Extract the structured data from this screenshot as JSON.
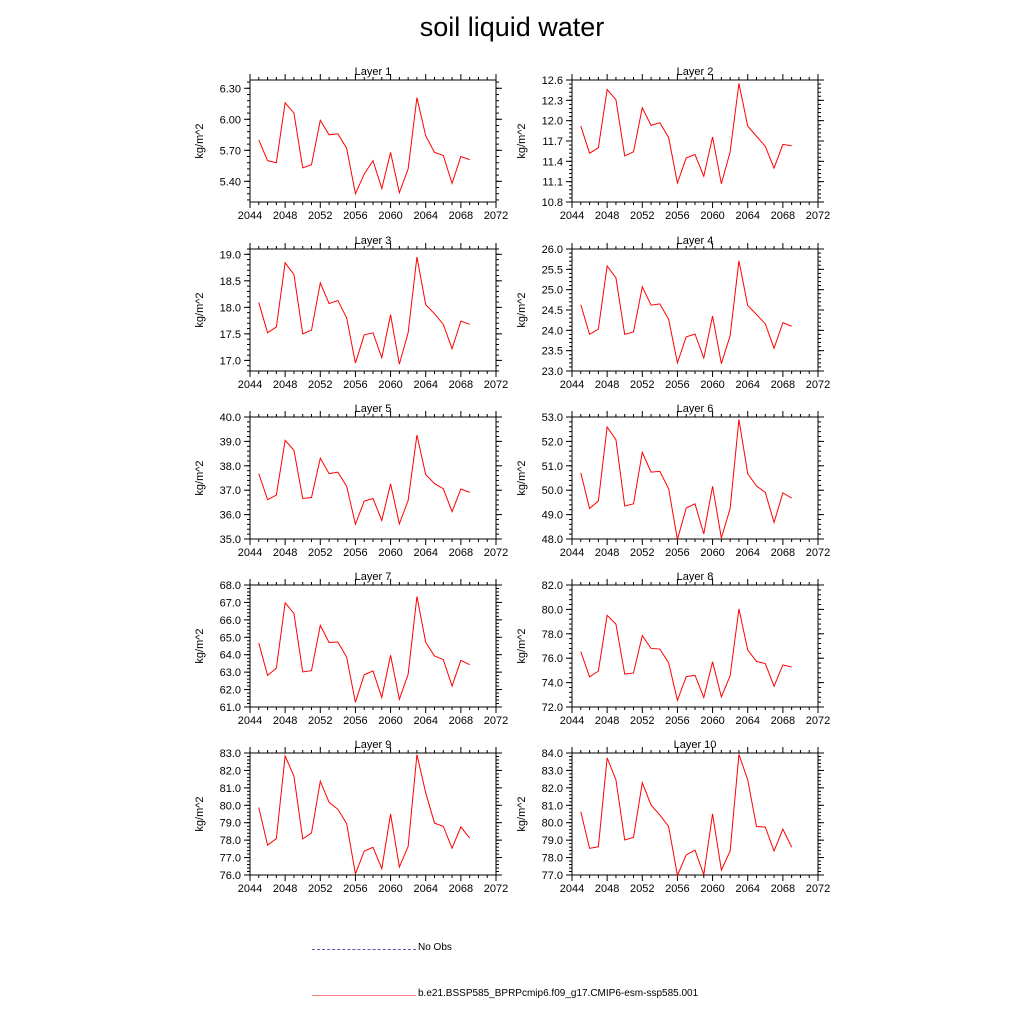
{
  "title": "soil liquid water",
  "colors": {
    "series": "#ff0000",
    "no_obs": "#5a5aaa",
    "model_legend": "#ff8080"
  },
  "legend": [
    {
      "label": "No Obs",
      "style": "dashed"
    },
    {
      "label": "b.e21.BSSP585_BPRPcmip6.f09_g17.CMIP6-esm-ssp585.001",
      "style": "solid"
    }
  ],
  "chart_data": [
    {
      "type": "line",
      "title": "Layer 1",
      "ylabel": "kg/m^2",
      "xlim": [
        2044,
        2072
      ],
      "xticks": [
        2044,
        2048,
        2052,
        2056,
        2060,
        2064,
        2068,
        2072
      ],
      "ylim": [
        5.2,
        6.38
      ],
      "yticks": [
        "5.40",
        "5.70",
        "6.00",
        "6.30"
      ],
      "x": [
        2045,
        2046,
        2047,
        2048,
        2049,
        2050,
        2051,
        2052,
        2053,
        2054,
        2055,
        2056,
        2057,
        2058,
        2059,
        2060,
        2061,
        2062,
        2063,
        2064,
        2065,
        2066,
        2067,
        2068,
        2069
      ],
      "series": [
        {
          "values": [
            5.8,
            5.6,
            5.58,
            6.16,
            6.06,
            5.53,
            5.56,
            5.99,
            5.85,
            5.86,
            5.72,
            5.28,
            5.47,
            5.6,
            5.33,
            5.68,
            5.29,
            5.52,
            6.21,
            5.84,
            5.68,
            5.65,
            5.38,
            5.64,
            5.61
          ]
        }
      ]
    },
    {
      "type": "line",
      "title": "Layer 2",
      "ylabel": "kg/m^2",
      "xlim": [
        2044,
        2072
      ],
      "xticks": [
        2044,
        2048,
        2052,
        2056,
        2060,
        2064,
        2068,
        2072
      ],
      "ylim": [
        10.8,
        12.6
      ],
      "yticks": [
        "10.8",
        "11.1",
        "11.4",
        "11.7",
        "12.0",
        "12.3",
        "12.6"
      ],
      "x": [
        2045,
        2046,
        2047,
        2048,
        2049,
        2050,
        2051,
        2052,
        2053,
        2054,
        2055,
        2056,
        2057,
        2058,
        2059,
        2060,
        2061,
        2062,
        2063,
        2064,
        2065,
        2066,
        2067,
        2068,
        2069
      ],
      "series": [
        {
          "values": [
            11.92,
            11.52,
            11.6,
            12.46,
            12.31,
            11.48,
            11.54,
            12.19,
            11.93,
            11.97,
            11.75,
            11.08,
            11.45,
            11.5,
            11.18,
            11.76,
            11.07,
            11.54,
            12.55,
            11.92,
            11.77,
            11.62,
            11.3,
            11.65,
            11.63
          ]
        }
      ]
    },
    {
      "type": "line",
      "title": "Layer 3",
      "ylabel": "kg/m^2",
      "xlim": [
        2044,
        2072
      ],
      "xticks": [
        2044,
        2048,
        2052,
        2056,
        2060,
        2064,
        2068,
        2072
      ],
      "ylim": [
        16.8,
        19.1
      ],
      "yticks": [
        "17.0",
        "17.5",
        "18.0",
        "18.5",
        "19.0"
      ],
      "x": [
        2045,
        2046,
        2047,
        2048,
        2049,
        2050,
        2051,
        2052,
        2053,
        2054,
        2055,
        2056,
        2057,
        2058,
        2059,
        2060,
        2061,
        2062,
        2063,
        2064,
        2065,
        2066,
        2067,
        2068,
        2069
      ],
      "series": [
        {
          "values": [
            18.09,
            17.52,
            17.63,
            18.84,
            18.62,
            17.5,
            17.57,
            18.46,
            18.07,
            18.13,
            17.8,
            16.95,
            17.48,
            17.52,
            17.05,
            17.86,
            16.93,
            17.52,
            18.95,
            18.05,
            17.88,
            17.68,
            17.22,
            17.74,
            17.68
          ]
        }
      ]
    },
    {
      "type": "line",
      "title": "Layer 4",
      "ylabel": "kg/m^2",
      "xlim": [
        2044,
        2072
      ],
      "xticks": [
        2044,
        2048,
        2052,
        2056,
        2060,
        2064,
        2068,
        2072
      ],
      "ylim": [
        23.0,
        26.0
      ],
      "yticks": [
        "23.0",
        "23.5",
        "24.0",
        "24.5",
        "25.0",
        "25.5",
        "26.0"
      ],
      "x": [
        2045,
        2046,
        2047,
        2048,
        2049,
        2050,
        2051,
        2052,
        2053,
        2054,
        2055,
        2056,
        2057,
        2058,
        2059,
        2060,
        2061,
        2062,
        2063,
        2064,
        2065,
        2066,
        2067,
        2068,
        2069
      ],
      "series": [
        {
          "values": [
            24.63,
            23.9,
            24.03,
            25.58,
            25.29,
            23.9,
            23.96,
            25.07,
            24.62,
            24.65,
            24.27,
            23.2,
            23.84,
            23.91,
            23.32,
            24.35,
            23.18,
            23.87,
            25.71,
            24.61,
            24.39,
            24.16,
            23.56,
            24.19,
            24.1
          ]
        }
      ]
    },
    {
      "type": "line",
      "title": "Layer 5",
      "ylabel": "kg/m^2",
      "xlim": [
        2044,
        2072
      ],
      "xticks": [
        2044,
        2048,
        2052,
        2056,
        2060,
        2064,
        2068,
        2072
      ],
      "ylim": [
        35.0,
        40.0
      ],
      "yticks": [
        "35.0",
        "36.0",
        "37.0",
        "38.0",
        "39.0",
        "40.0"
      ],
      "x": [
        2045,
        2046,
        2047,
        2048,
        2049,
        2050,
        2051,
        2052,
        2053,
        2054,
        2055,
        2056,
        2057,
        2058,
        2059,
        2060,
        2061,
        2062,
        2063,
        2064,
        2065,
        2066,
        2067,
        2068,
        2069
      ],
      "series": [
        {
          "values": [
            37.68,
            36.61,
            36.8,
            39.04,
            38.64,
            36.66,
            36.7,
            38.31,
            37.68,
            37.74,
            37.16,
            35.61,
            36.55,
            36.66,
            35.76,
            37.26,
            35.62,
            36.58,
            39.26,
            37.64,
            37.27,
            37.06,
            36.12,
            37.05,
            36.91
          ]
        }
      ]
    },
    {
      "type": "line",
      "title": "Layer 6",
      "ylabel": "kg/m^2",
      "xlim": [
        2044,
        2072
      ],
      "xticks": [
        2044,
        2048,
        2052,
        2056,
        2060,
        2064,
        2068,
        2072
      ],
      "ylim": [
        48.0,
        53.0
      ],
      "yticks": [
        "48.0",
        "49.0",
        "50.0",
        "51.0",
        "52.0",
        "53.0"
      ],
      "x": [
        2045,
        2046,
        2047,
        2048,
        2049,
        2050,
        2051,
        2052,
        2053,
        2054,
        2055,
        2056,
        2057,
        2058,
        2059,
        2060,
        2061,
        2062,
        2063,
        2064,
        2065,
        2066,
        2067,
        2068,
        2069
      ],
      "series": [
        {
          "values": [
            50.71,
            49.25,
            49.56,
            52.59,
            52.07,
            49.35,
            49.44,
            51.55,
            50.74,
            50.77,
            50.06,
            47.98,
            49.27,
            49.44,
            48.21,
            50.16,
            48.04,
            49.25,
            52.9,
            50.68,
            50.17,
            49.91,
            48.68,
            49.89,
            49.68
          ]
        }
      ]
    },
    {
      "type": "line",
      "title": "Layer 7",
      "ylabel": "kg/m^2",
      "xlim": [
        2044,
        2072
      ],
      "xticks": [
        2044,
        2048,
        2052,
        2056,
        2060,
        2064,
        2068,
        2072
      ],
      "ylim": [
        61.0,
        68.0
      ],
      "yticks": [
        "61.0",
        "62.0",
        "63.0",
        "64.0",
        "65.0",
        "66.0",
        "67.0",
        "68.0"
      ],
      "x": [
        2045,
        2046,
        2047,
        2048,
        2049,
        2050,
        2051,
        2052,
        2053,
        2054,
        2055,
        2056,
        2057,
        2058,
        2059,
        2060,
        2061,
        2062,
        2063,
        2064,
        2065,
        2066,
        2067,
        2068,
        2069
      ],
      "series": [
        {
          "values": [
            64.68,
            62.81,
            63.23,
            66.98,
            66.37,
            63.01,
            63.09,
            65.68,
            64.7,
            64.73,
            63.86,
            61.27,
            62.85,
            63.07,
            61.55,
            63.97,
            61.44,
            62.88,
            67.34,
            64.71,
            63.93,
            63.72,
            62.2,
            63.68,
            63.43
          ]
        }
      ]
    },
    {
      "type": "line",
      "title": "Layer 8",
      "ylabel": "kg/m^2",
      "xlim": [
        2044,
        2072
      ],
      "xticks": [
        2044,
        2048,
        2052,
        2056,
        2060,
        2064,
        2068,
        2072
      ],
      "ylim": [
        72.0,
        82.0
      ],
      "yticks": [
        "72.0",
        "74.0",
        "76.0",
        "78.0",
        "80.0",
        "82.0"
      ],
      "x": [
        2045,
        2046,
        2047,
        2048,
        2049,
        2050,
        2051,
        2052,
        2053,
        2054,
        2055,
        2056,
        2057,
        2058,
        2059,
        2060,
        2061,
        2062,
        2063,
        2064,
        2065,
        2066,
        2067,
        2068,
        2069
      ],
      "series": [
        {
          "values": [
            76.54,
            74.47,
            74.94,
            79.52,
            78.79,
            74.7,
            74.79,
            77.85,
            76.8,
            76.75,
            75.62,
            72.55,
            74.48,
            74.61,
            72.78,
            75.71,
            72.83,
            74.56,
            80.04,
            76.68,
            75.74,
            75.56,
            73.7,
            75.45,
            75.28
          ]
        }
      ]
    },
    {
      "type": "line",
      "title": "Layer 9",
      "ylabel": "kg/m^2",
      "xlim": [
        2044,
        2072
      ],
      "xticks": [
        2044,
        2048,
        2052,
        2056,
        2060,
        2064,
        2068,
        2072
      ],
      "ylim": [
        76.0,
        83.0
      ],
      "yticks": [
        "76.0",
        "77.0",
        "78.0",
        "79.0",
        "80.0",
        "81.0",
        "82.0",
        "83.0"
      ],
      "x": [
        2045,
        2046,
        2047,
        2048,
        2049,
        2050,
        2051,
        2052,
        2053,
        2054,
        2055,
        2056,
        2057,
        2058,
        2059,
        2060,
        2061,
        2062,
        2063,
        2064,
        2065,
        2066,
        2067,
        2068,
        2069
      ],
      "series": [
        {
          "values": [
            79.87,
            77.71,
            78.09,
            82.83,
            81.67,
            78.07,
            78.41,
            81.38,
            80.17,
            79.77,
            78.95,
            76.06,
            77.37,
            77.59,
            76.36,
            79.5,
            76.46,
            77.64,
            82.91,
            80.71,
            78.98,
            78.79,
            77.54,
            78.76,
            78.12
          ]
        }
      ]
    },
    {
      "type": "line",
      "title": "Layer 10",
      "ylabel": "kg/m^2",
      "xlim": [
        2044,
        2072
      ],
      "xticks": [
        2044,
        2048,
        2052,
        2056,
        2060,
        2064,
        2068,
        2072
      ],
      "ylim": [
        77.0,
        84.0
      ],
      "yticks": [
        "77.0",
        "78.0",
        "79.0",
        "80.0",
        "81.0",
        "82.0",
        "83.0",
        "84.0"
      ],
      "x": [
        2045,
        2046,
        2047,
        2048,
        2049,
        2050,
        2051,
        2052,
        2053,
        2054,
        2055,
        2056,
        2057,
        2058,
        2059,
        2060,
        2061,
        2062,
        2063,
        2064,
        2065,
        2066,
        2067,
        2068,
        2069
      ],
      "series": [
        {
          "values": [
            80.63,
            78.53,
            78.62,
            83.72,
            82.46,
            79.01,
            79.16,
            82.29,
            81.01,
            80.44,
            79.78,
            76.98,
            78.15,
            78.43,
            77.02,
            80.51,
            77.28,
            78.38,
            83.92,
            82.46,
            79.78,
            79.75,
            78.38,
            79.63,
            78.6
          ]
        }
      ]
    }
  ]
}
